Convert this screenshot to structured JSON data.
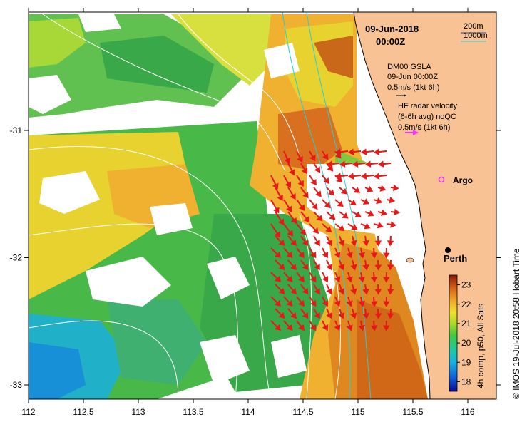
{
  "map": {
    "date_line": "09-Jun-2018",
    "time_line": "00:00Z",
    "scale": {
      "label_200m": "200m",
      "label_1000m": "1000m"
    },
    "gsla_legend": {
      "line1": "DM00 GSLA",
      "line2": "09-Jun 00:00Z",
      "line3": "0.5m/s (1kt 6h)"
    },
    "radar_legend": {
      "line1": "HF radar velocity",
      "line2": "(6-6h avg) noQC",
      "line3": "0.5m/s (1kt 6h)"
    },
    "places": [
      {
        "name": "Argo",
        "lon": 115.88,
        "lat": -31.45
      },
      {
        "name": "Perth",
        "lon": 115.86,
        "lat": -31.95
      }
    ],
    "x_ticks": [
      "112",
      "112.5",
      "113",
      "113.5",
      "114",
      "114.5",
      "115",
      "115.5",
      "116"
    ],
    "y_ticks": [
      "-31",
      "-32",
      "-33"
    ],
    "colorbar": {
      "title": "4h comp, p50, All Sats",
      "ticks": [
        "18",
        "19",
        "20",
        "21",
        "22",
        "23"
      ],
      "min": 17.5,
      "max": 23.5
    },
    "credit": "© IMOS 19-Jul-2018 20:58 Hobart Time",
    "colors": {
      "land": "#f8c294",
      "arrow": "#e81818",
      "contour": "#ffffff",
      "isobath": "#22d0d8",
      "argo": "#ff30ff"
    }
  }
}
